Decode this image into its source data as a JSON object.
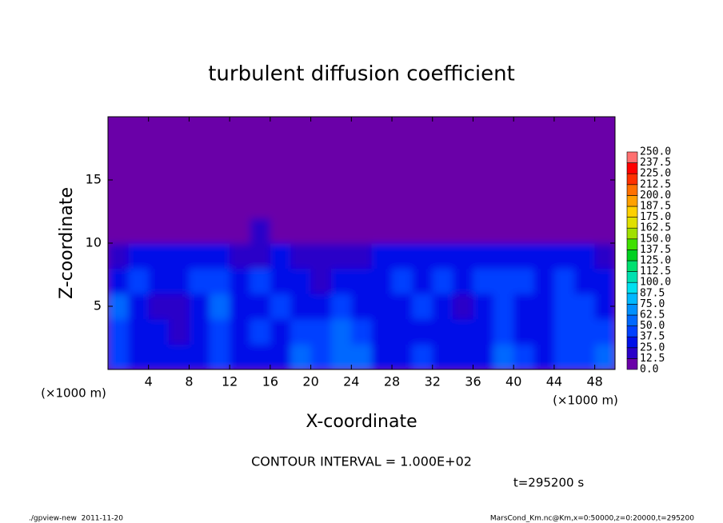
{
  "chart_data": {
    "type": "heatmap",
    "title": "turbulent diffusion coefficient",
    "xlabel": "X-coordinate",
    "ylabel": "Z-coordinate",
    "x_unit": "(×1000 m)",
    "y_unit": "(×1000 m)",
    "contour_interval_text": "CONTOUR INTERVAL = 1.000E+02",
    "time_text": "t=295200 s",
    "footer_left": "./gpview-new  2011-11-20",
    "footer_right": "MarsCond_Km.nc@Km,x=0:50000,z=0:20000,t=295200",
    "xlim": [
      0,
      50
    ],
    "ylim": [
      0,
      20
    ],
    "xticks": [
      4,
      8,
      12,
      16,
      20,
      24,
      28,
      32,
      36,
      40,
      44,
      48
    ],
    "yticks": [
      5,
      10,
      15
    ],
    "x": [
      1,
      3,
      5,
      7,
      9,
      11,
      13,
      15,
      17,
      19,
      21,
      23,
      25,
      27,
      29,
      31,
      33,
      35,
      37,
      39,
      41,
      43,
      45,
      47,
      49
    ],
    "y": [
      1,
      3,
      5,
      7,
      9,
      11,
      13,
      15,
      17,
      19
    ],
    "z": [
      [
        40,
        35,
        30,
        25,
        28,
        40,
        30,
        25,
        35,
        50,
        45,
        55,
        60,
        35,
        30,
        40,
        35,
        30,
        35,
        50,
        40,
        30,
        45,
        40,
        55
      ],
      [
        45,
        30,
        25,
        20,
        25,
        45,
        35,
        40,
        30,
        45,
        40,
        50,
        45,
        30,
        25,
        35,
        30,
        25,
        30,
        45,
        35,
        25,
        40,
        45,
        40
      ],
      [
        50,
        35,
        20,
        15,
        30,
        50,
        25,
        35,
        40,
        35,
        30,
        40,
        35,
        30,
        35,
        40,
        25,
        20,
        35,
        40,
        30,
        35,
        45,
        40,
        35
      ],
      [
        30,
        40,
        35,
        30,
        40,
        45,
        30,
        40,
        35,
        25,
        20,
        30,
        25,
        35,
        40,
        35,
        40,
        35,
        40,
        45,
        40,
        35,
        40,
        35,
        30
      ],
      [
        15,
        30,
        35,
        30,
        35,
        25,
        15,
        20,
        25,
        15,
        15,
        20,
        20,
        25,
        30,
        35,
        30,
        30,
        35,
        30,
        35,
        30,
        35,
        30,
        20
      ],
      [
        0,
        0,
        10,
        5,
        5,
        10,
        5,
        15,
        10,
        5,
        5,
        10,
        5,
        0,
        5,
        10,
        5,
        5,
        0,
        5,
        10,
        5,
        5,
        0,
        0
      ],
      [
        0,
        0,
        0,
        0,
        0,
        0,
        0,
        0,
        0,
        0,
        0,
        0,
        0,
        0,
        0,
        0,
        0,
        0,
        0,
        0,
        0,
        0,
        0,
        0,
        0
      ],
      [
        0,
        0,
        0,
        0,
        0,
        0,
        0,
        0,
        0,
        0,
        0,
        0,
        0,
        0,
        0,
        0,
        0,
        0,
        0,
        0,
        0,
        0,
        0,
        0,
        0
      ],
      [
        0,
        0,
        0,
        0,
        0,
        0,
        0,
        0,
        0,
        0,
        0,
        0,
        0,
        0,
        0,
        0,
        0,
        0,
        0,
        0,
        0,
        0,
        0,
        0,
        0
      ],
      [
        0,
        0,
        0,
        0,
        0,
        0,
        0,
        0,
        0,
        0,
        0,
        0,
        0,
        0,
        0,
        0,
        0,
        0,
        0,
        0,
        0,
        0,
        0,
        0,
        0
      ]
    ],
    "colorbar_levels": [
      {
        "value": 0,
        "label": "0.0"
      },
      {
        "value": 12.5,
        "label": "12.5"
      },
      {
        "value": 25,
        "label": "25.0"
      },
      {
        "value": 37.5,
        "label": "37.5"
      },
      {
        "value": 50,
        "label": "50.0"
      },
      {
        "value": 62.5,
        "label": "62.5"
      },
      {
        "value": 75,
        "label": "75.0"
      },
      {
        "value": 87.5,
        "label": "87.5"
      },
      {
        "value": 100,
        "label": "100.0"
      },
      {
        "value": 112.5,
        "label": "112.5"
      },
      {
        "value": 125,
        "label": "125.0"
      },
      {
        "value": 137.5,
        "label": "137.5"
      },
      {
        "value": 150,
        "label": "150.0"
      },
      {
        "value": 162.5,
        "label": "162.5"
      },
      {
        "value": 175,
        "label": "175.0"
      },
      {
        "value": 187.5,
        "label": "187.5"
      },
      {
        "value": 200,
        "label": "200.0"
      },
      {
        "value": 212.5,
        "label": "212.5"
      },
      {
        "value": 225,
        "label": "225.0"
      },
      {
        "value": 237.5,
        "label": "237.5"
      },
      {
        "value": 250,
        "label": "250.0"
      }
    ],
    "colors": [
      "#6a00a8",
      "#2a00c8",
      "#0010e8",
      "#0040ff",
      "#0068ff",
      "#0090ff",
      "#00b8ff",
      "#00e0f0",
      "#00e0b0",
      "#00e070",
      "#00d020",
      "#40e000",
      "#a0e000",
      "#e0e000",
      "#ffd000",
      "#ffa000",
      "#ff7000",
      "#ff3000",
      "#ff0000",
      "#ff7070"
    ]
  }
}
